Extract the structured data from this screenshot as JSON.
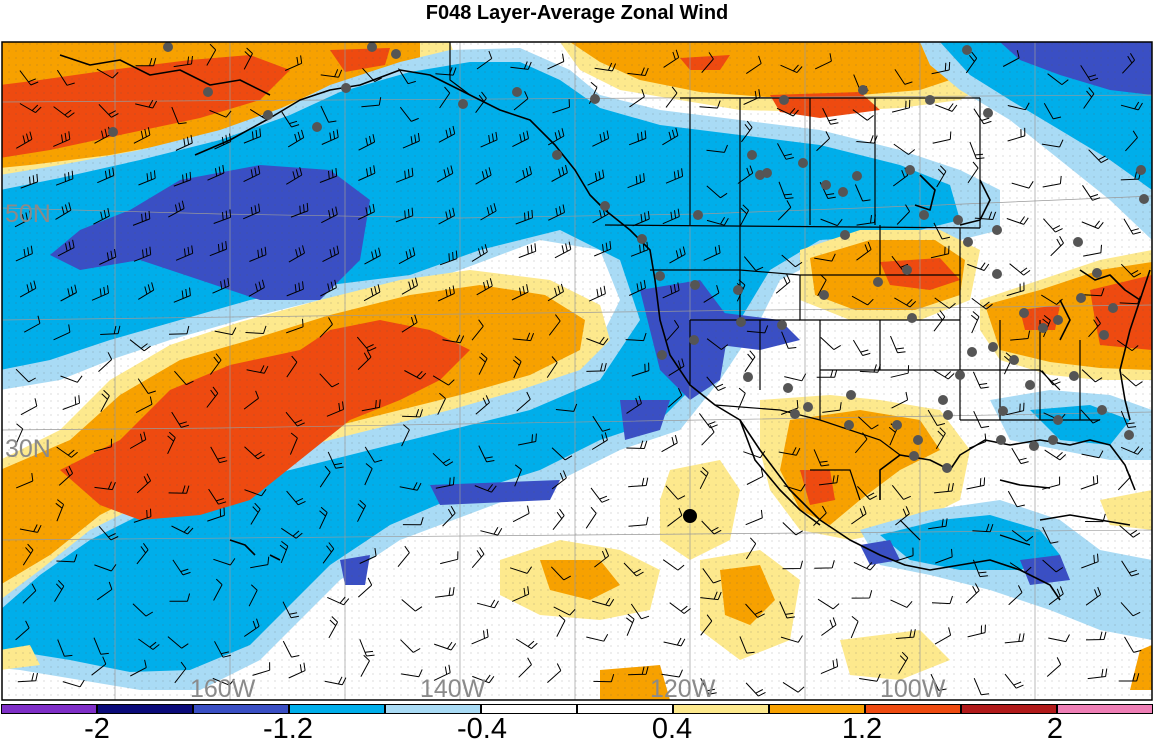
{
  "title": "F048 Layer-Average Zonal Wind",
  "latitude_labels": [
    "50N",
    "30N"
  ],
  "longitude_labels": [
    "160W",
    "140W",
    "120W",
    "100W"
  ],
  "colorbar": {
    "colors": [
      "#7f2fc7",
      "#0b0b7a",
      "#3a4fc4",
      "#00aeea",
      "#a9dbf5",
      "#ffffff",
      "#ffffff",
      "#fde98d",
      "#f7a100",
      "#ee4a10",
      "#b11a1a",
      "#ef7fb6"
    ],
    "tick_labels": [
      "-2",
      "-1.2",
      "-0.4",
      "0.4",
      "1.2",
      "2"
    ]
  },
  "fill_colors": {
    "light_blue": "#a9dbf5",
    "blue": "#00aeea",
    "dark_blue": "#3a4fc4",
    "light_yellow": "#fde98d",
    "orange": "#f7a100",
    "red": "#ee4a10",
    "dark_red": "#b11a1a"
  },
  "stations": {
    "marker": "station-dot",
    "highlighted_marker": "current-location-dot"
  }
}
